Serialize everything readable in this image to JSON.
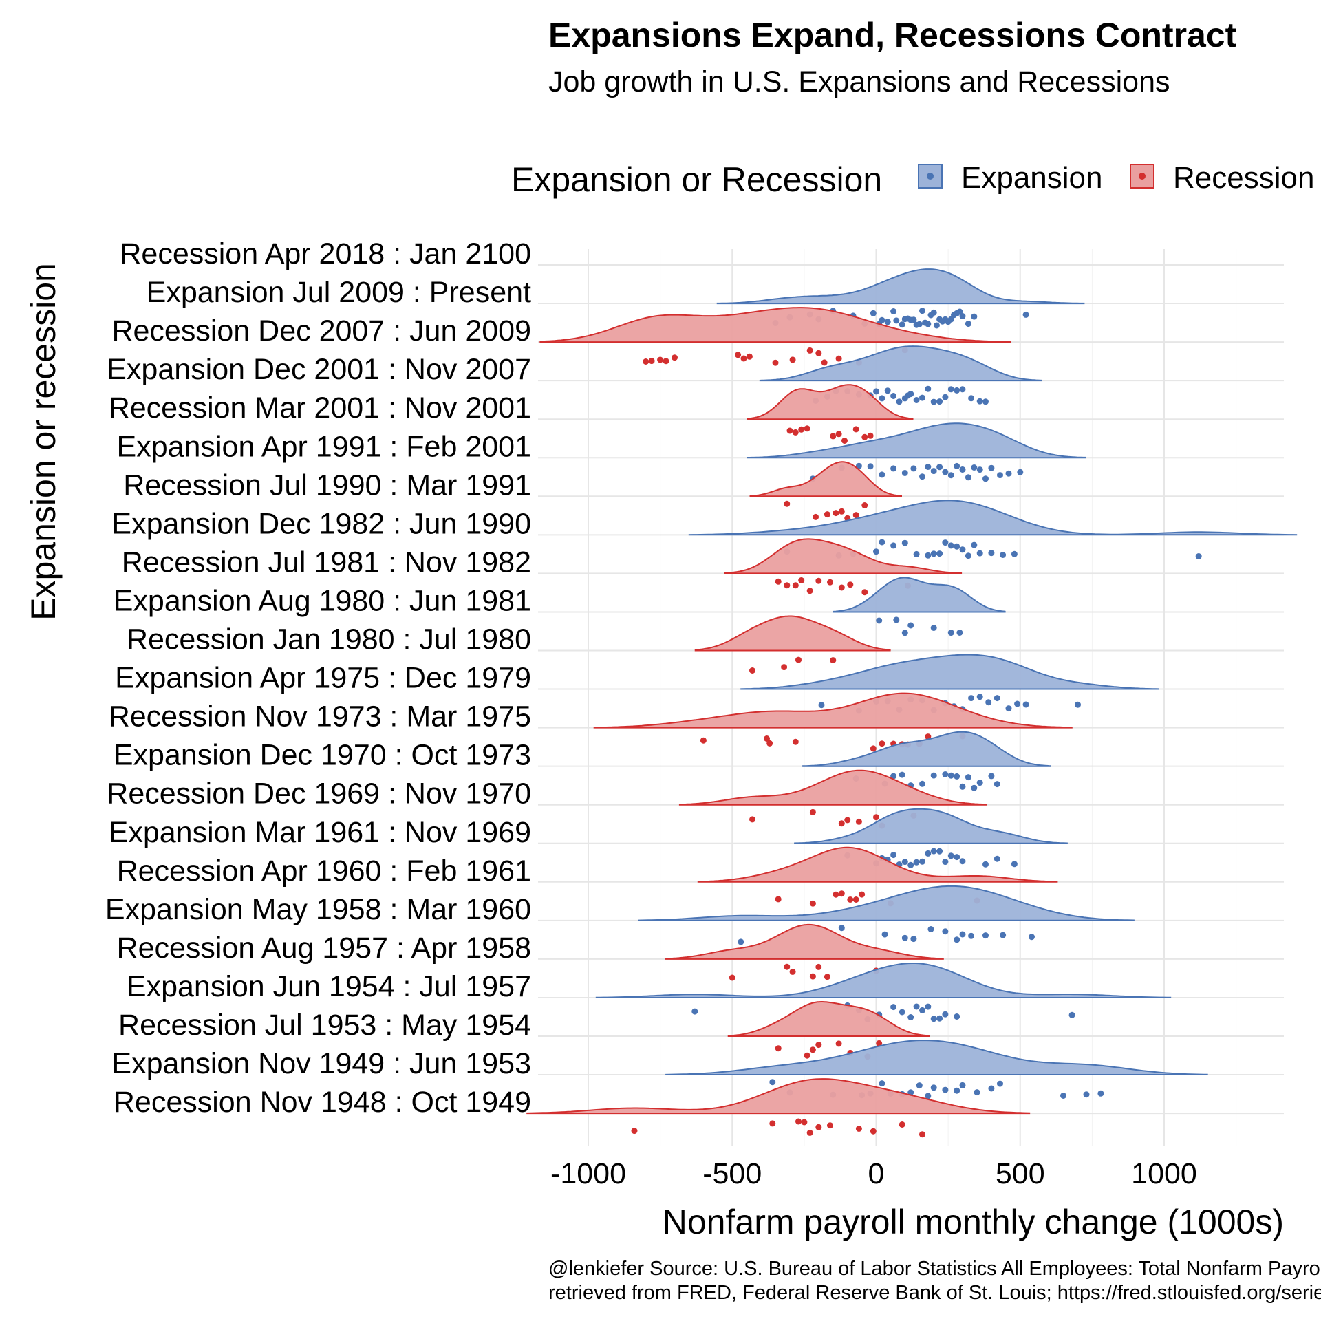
{
  "chart_data": {
    "type": "raincloud",
    "title": "Expansions Expand, Recessions Contract",
    "subtitle": "Job growth in U.S. Expansions and Recessions",
    "xlabel": "Nonfarm payroll monthly change (1000s)",
    "ylabel": "Expansion or recession",
    "xlim": [
      -1100,
      1400
    ],
    "x_ticks": [
      -1000,
      -500,
      0,
      500,
      1000
    ],
    "x_tick_labels": [
      "-1000",
      "-500",
      "0",
      "500",
      "1000"
    ],
    "grid": true,
    "legend": {
      "title": "Expansion or Recession",
      "position": "top",
      "items": [
        {
          "label": "Expansion",
          "fill": "#9db3d9",
          "point": "#4a74b4"
        },
        {
          "label": "Recession",
          "fill": "#eaa0a0",
          "point": "#d32f2f"
        }
      ]
    },
    "caption": [
      "@lenkiefer Source: U.S. Bureau of Labor Statistics All Employees: Total Nonfarm Payrolls [PAYEMS]",
      "retrieved from FRED, Federal Reserve Bank of St. Louis; https://fred.stlouisfed.org/series/PAYEMS"
    ],
    "series": [
      {
        "name": "Recession Apr 2018 : Jan 2100",
        "type": "Recession",
        "points": []
      },
      {
        "name": "Expansion Jul 2009 : Present",
        "type": "Expansion",
        "points": [
          -350,
          -300,
          -230,
          -200,
          -150,
          -80,
          -40,
          -10,
          10,
          20,
          40,
          60,
          70,
          90,
          100,
          110,
          120,
          130,
          140,
          150,
          160,
          170,
          180,
          190,
          200,
          210,
          220,
          230,
          240,
          250,
          260,
          270,
          280,
          290,
          300,
          320,
          340,
          520
        ]
      },
      {
        "name": "Recession Dec 2007 : Jun 2009",
        "type": "Recession",
        "points": [
          -800,
          -780,
          -750,
          -730,
          -700,
          -480,
          -460,
          -440,
          -350,
          -290,
          -230,
          -200,
          -180,
          -130,
          -60,
          100
        ]
      },
      {
        "name": "Expansion Dec 2001 : Nov 2007",
        "type": "Expansion",
        "points": [
          -210,
          -170,
          -140,
          -100,
          -60,
          -20,
          0,
          20,
          40,
          60,
          80,
          100,
          110,
          120,
          140,
          160,
          180,
          200,
          220,
          240,
          260,
          280,
          300,
          330,
          360,
          380
        ]
      },
      {
        "name": "Recession Mar 2001 : Nov 2001",
        "type": "Recession",
        "points": [
          -300,
          -280,
          -260,
          -240,
          -150,
          -130,
          -110,
          -70,
          -40,
          -20
        ]
      },
      {
        "name": "Expansion Apr 1991 : Feb 2001",
        "type": "Expansion",
        "points": [
          -220,
          -120,
          -60,
          -20,
          20,
          60,
          100,
          130,
          160,
          180,
          200,
          220,
          240,
          260,
          280,
          300,
          320,
          340,
          360,
          380,
          400,
          430,
          460,
          500
        ]
      },
      {
        "name": "Recession Jul 1990 : Mar 1991",
        "type": "Recession",
        "points": [
          -310,
          -210,
          -170,
          -140,
          -120,
          -100,
          -70,
          -40
        ]
      },
      {
        "name": "Expansion Dec 1982 : Jun 1990",
        "type": "Expansion",
        "points": [
          -310,
          -130,
          -80,
          0,
          20,
          60,
          100,
          140,
          180,
          200,
          220,
          240,
          260,
          280,
          300,
          320,
          340,
          360,
          400,
          440,
          480,
          1120
        ]
      },
      {
        "name": "Recession Jul 1981 : Nov 1982",
        "type": "Recession",
        "points": [
          -340,
          -310,
          -280,
          -260,
          -230,
          -200,
          -160,
          -120,
          -90,
          -40,
          110
        ]
      },
      {
        "name": "Expansion Aug 1980 : Jun 1981",
        "type": "Expansion",
        "points": [
          10,
          70,
          100,
          120,
          200,
          260,
          290
        ]
      },
      {
        "name": "Recession Jan 1980 : Jul 1980",
        "type": "Recession",
        "points": [
          -430,
          -320,
          -270,
          -150
        ]
      },
      {
        "name": "Expansion Apr 1975 : Dec 1979",
        "type": "Expansion",
        "points": [
          -190,
          -60,
          0,
          40,
          80,
          120,
          160,
          200,
          240,
          270,
          300,
          330,
          360,
          390,
          420,
          460,
          490,
          520,
          700
        ]
      },
      {
        "name": "Recession Nov 1973 : Mar 1975",
        "type": "Recession",
        "points": [
          -600,
          -380,
          -370,
          -280,
          -10,
          20,
          60,
          90,
          110,
          150,
          180,
          300
        ]
      },
      {
        "name": "Expansion Dec 1970 : Oct 1973",
        "type": "Expansion",
        "points": [
          -70,
          30,
          60,
          90,
          120,
          160,
          200,
          240,
          260,
          280,
          300,
          320,
          340,
          360,
          400,
          420
        ]
      },
      {
        "name": "Recession Dec 1969 : Nov 1970",
        "type": "Recession",
        "points": [
          -430,
          -220,
          -120,
          -100,
          -60,
          0,
          20,
          130
        ]
      },
      {
        "name": "Expansion Mar 1961 : Nov 1969",
        "type": "Expansion",
        "points": [
          -100,
          0,
          20,
          40,
          60,
          80,
          100,
          120,
          140,
          160,
          180,
          200,
          220,
          240,
          260,
          280,
          300,
          380,
          420,
          480
        ]
      },
      {
        "name": "Recession Apr 1960 : Feb 1961",
        "type": "Recession",
        "points": [
          -340,
          -220,
          -140,
          -120,
          -90,
          -70,
          -50,
          50,
          350
        ]
      },
      {
        "name": "Expansion May 1958 : Mar 1960",
        "type": "Expansion",
        "points": [
          -470,
          -120,
          30,
          100,
          130,
          190,
          240,
          280,
          300,
          330,
          380,
          440,
          540
        ]
      },
      {
        "name": "Recession Aug 1957 : Apr 1958",
        "type": "Recession",
        "points": [
          -500,
          -310,
          -290,
          -220,
          -200,
          -170,
          0
        ]
      },
      {
        "name": "Expansion Jun 1954 : Jul 1957",
        "type": "Expansion",
        "points": [
          -630,
          -100,
          -60,
          -30,
          10,
          60,
          90,
          120,
          140,
          160,
          180,
          200,
          220,
          240,
          280,
          680
        ]
      },
      {
        "name": "Recession Jul 1953 : May 1954",
        "type": "Recession",
        "points": [
          -340,
          -240,
          -220,
          -200,
          -130,
          -90,
          -30,
          10
        ]
      },
      {
        "name": "Expansion Nov 1949 : Jun 1953",
        "type": "Expansion",
        "points": [
          -360,
          -300,
          -150,
          -50,
          -20,
          20,
          50,
          90,
          120,
          150,
          180,
          200,
          240,
          280,
          300,
          350,
          400,
          430,
          650,
          730,
          780
        ]
      },
      {
        "name": "Recession Nov 1948 : Oct 1949",
        "type": "Recession",
        "points": [
          -840,
          -360,
          -270,
          -250,
          -230,
          -200,
          -160,
          -60,
          -10,
          90,
          160
        ]
      }
    ]
  }
}
